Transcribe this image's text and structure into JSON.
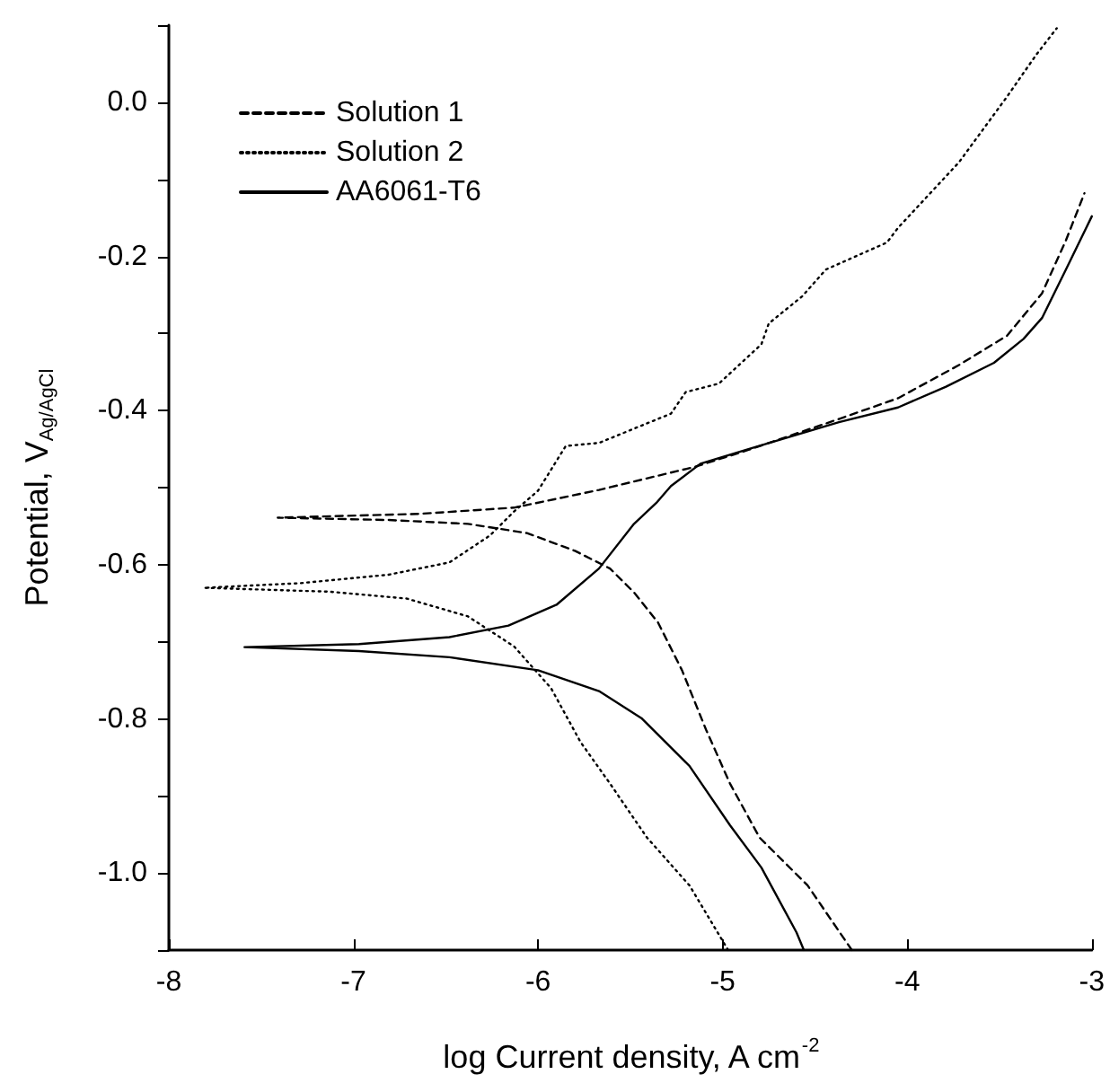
{
  "chart_data": {
    "type": "line",
    "xlabel": "log Current density, A cm$^{-2}$",
    "ylabel": "Potential, V$_{Ag/AgCl}$",
    "xlim": [
      -8,
      -3
    ],
    "xticks": [
      -8,
      -7,
      -6,
      -5,
      -4,
      -3
    ],
    "ylim": [
      -1.1,
      0.1
    ],
    "yticks": [
      {
        "value": -1,
        "label": "-1.0"
      },
      {
        "value": -0.8,
        "label": "-0.8"
      },
      {
        "value": -0.6,
        "label": "-0.6"
      },
      {
        "value": -0.4,
        "label": "-0.4"
      },
      {
        "value": -0.2,
        "label": "-0.2"
      },
      {
        "value": 0,
        "label": "0.0"
      }
    ],
    "grid": false,
    "legend": "top left",
    "series": [
      {
        "name": "Solution 1",
        "color": "#000000",
        "line_style": "dashed",
        "x": [
          -4.3,
          -4.54,
          -4.8,
          -4.96,
          -5.09,
          -5.22,
          -5.35,
          -5.48,
          -5.61,
          -5.8,
          -6.06,
          -6.38,
          -6.81,
          -7.41,
          -6.64,
          -6.13,
          -5.67,
          -5.15,
          -4.86,
          -4.37,
          -4.05,
          -3.72,
          -3.46,
          -3.27,
          -3.14,
          -3.04
        ],
        "values": [
          -1.1,
          -1.016,
          -0.954,
          -0.884,
          -0.814,
          -0.737,
          -0.675,
          -0.636,
          -0.605,
          -0.582,
          -0.559,
          -0.547,
          -0.542,
          -0.539,
          -0.534,
          -0.526,
          -0.503,
          -0.473,
          -0.451,
          -0.411,
          -0.384,
          -0.341,
          -0.303,
          -0.248,
          -0.179,
          -0.118
        ]
      },
      {
        "name": "Solution 2",
        "color": "#000000",
        "line_style": "dotted",
        "x": [
          -4.97,
          -5.18,
          -5.41,
          -5.61,
          -5.77,
          -5.93,
          -6.13,
          -6.38,
          -6.71,
          -7.13,
          -7.81,
          -7.29,
          -6.81,
          -6.48,
          -6.26,
          -6.13,
          -6.0,
          -5.85,
          -5.67,
          -5.28,
          -5.2,
          -5.02,
          -4.79,
          -4.75,
          -4.57,
          -4.44,
          -4.11,
          -4.05,
          -3.72,
          -3.46,
          -3.3,
          -3.19
        ],
        "values": [
          -1.1,
          -1.016,
          -0.954,
          -0.884,
          -0.83,
          -0.76,
          -0.706,
          -0.667,
          -0.644,
          -0.635,
          -0.63,
          -0.624,
          -0.613,
          -0.597,
          -0.562,
          -0.531,
          -0.504,
          -0.446,
          -0.442,
          -0.404,
          -0.376,
          -0.365,
          -0.314,
          -0.287,
          -0.252,
          -0.217,
          -0.182,
          -0.163,
          -0.078,
          0.007,
          0.062,
          0.096
        ]
      },
      {
        "name": "AA6061-T6",
        "color": "#000000",
        "line_style": "solid",
        "x": [
          -4.56,
          -4.6,
          -4.79,
          -4.96,
          -5.18,
          -5.44,
          -5.67,
          -6.0,
          -6.48,
          -6.97,
          -7.59,
          -6.97,
          -6.48,
          -6.16,
          -5.9,
          -5.67,
          -5.48,
          -5.36,
          -5.28,
          -5.12,
          -4.86,
          -4.37,
          -4.05,
          -3.79,
          -3.53,
          -3.37,
          -3.27,
          -3.14,
          -3.0
        ],
        "values": [
          -1.1,
          -1.077,
          -0.993,
          -0.938,
          -0.861,
          -0.799,
          -0.764,
          -0.737,
          -0.72,
          -0.712,
          -0.707,
          -0.703,
          -0.694,
          -0.679,
          -0.652,
          -0.605,
          -0.547,
          -0.52,
          -0.498,
          -0.469,
          -0.45,
          -0.415,
          -0.396,
          -0.369,
          -0.338,
          -0.307,
          -0.28,
          -0.217,
          -0.148
        ]
      }
    ]
  }
}
